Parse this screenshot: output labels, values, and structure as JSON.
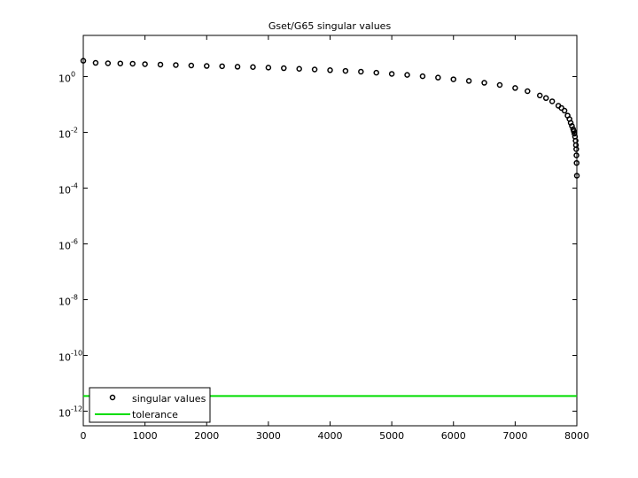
{
  "chart_data": {
    "type": "scatter",
    "title": "Gset/G65 singular values",
    "xlim": [
      0,
      8000
    ],
    "xticks": [
      0,
      1000,
      2000,
      3000,
      4000,
      5000,
      6000,
      7000,
      8000
    ],
    "ylim": [
      3e-13,
      30
    ],
    "yscale": "log",
    "yticks": [
      {
        "value": 1e-12,
        "label": "10^-12"
      },
      {
        "value": 1e-10,
        "label": "10^-10"
      },
      {
        "value": 1e-08,
        "label": "10^-8"
      },
      {
        "value": 1e-06,
        "label": "10^-6"
      },
      {
        "value": 0.0001,
        "label": "10^-4"
      },
      {
        "value": 0.01,
        "label": "10^-2"
      },
      {
        "value": 1,
        "label": "10^0"
      }
    ],
    "legend": "lower left",
    "series": [
      {
        "name": "singular values",
        "color": "#000000",
        "marker": "circle",
        "x": [
          0,
          200,
          400,
          600,
          800,
          1000,
          1250,
          1500,
          1750,
          2000,
          2250,
          2500,
          2750,
          3000,
          3250,
          3500,
          3750,
          4000,
          4250,
          4500,
          4750,
          5000,
          5250,
          5500,
          5750,
          6000,
          6250,
          6500,
          6750,
          7000,
          7200,
          7400,
          7500,
          7600,
          7700,
          7750,
          7800,
          7850,
          7880,
          7900,
          7920,
          7940,
          7950,
          7960,
          7970,
          7980,
          7985,
          7990,
          7993,
          7996,
          8000
        ],
        "values": [
          3.7,
          3.1,
          3.0,
          2.95,
          2.9,
          2.8,
          2.7,
          2.6,
          2.5,
          2.4,
          2.35,
          2.25,
          2.2,
          2.1,
          2.0,
          1.9,
          1.8,
          1.7,
          1.6,
          1.5,
          1.38,
          1.25,
          1.15,
          1.03,
          0.92,
          0.8,
          0.7,
          0.6,
          0.5,
          0.39,
          0.3,
          0.21,
          0.17,
          0.13,
          0.09,
          0.075,
          0.06,
          0.04,
          0.03,
          0.022,
          0.017,
          0.013,
          0.011,
          0.009,
          0.007,
          0.005,
          0.0035,
          0.0025,
          0.0015,
          0.0008,
          0.00028
        ]
      },
      {
        "name": "tolerance",
        "color": "#00dd00",
        "marker": "line",
        "x": [
          0,
          8000
        ],
        "values": [
          3.5e-12,
          3.5e-12
        ]
      }
    ]
  }
}
